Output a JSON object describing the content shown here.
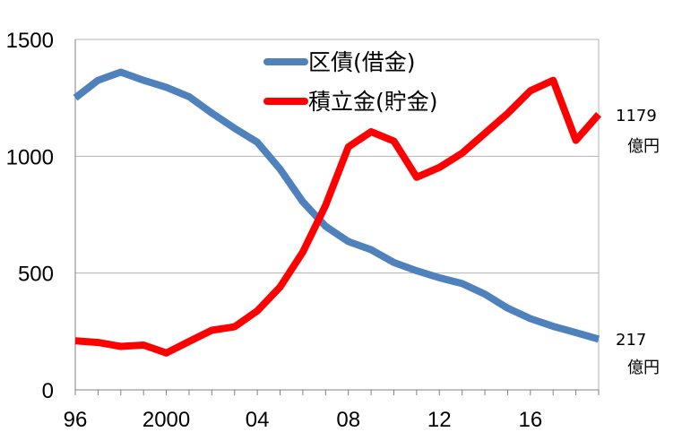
{
  "chart_data": {
    "type": "line",
    "title": "",
    "xlabel": "",
    "ylabel": "",
    "x": [
      1996,
      1997,
      1998,
      1999,
      2000,
      2001,
      2002,
      2003,
      2004,
      2005,
      2006,
      2007,
      2008,
      2009,
      2010,
      2011,
      2012,
      2013,
      2014,
      2015,
      2016,
      2017,
      2018,
      2019
    ],
    "xlim": [
      1996,
      2019
    ],
    "ylim": [
      0,
      1500
    ],
    "y_ticks": [
      0,
      500,
      1000,
      1500
    ],
    "y_tick_labels": [
      "0",
      "500",
      "1000",
      "1500"
    ],
    "x_ticks": [
      1996,
      2000,
      2004,
      2008,
      2012,
      2016
    ],
    "x_tick_labels": [
      "96",
      "2000",
      "04",
      "08",
      "12",
      "16"
    ],
    "grid": true,
    "legend_position": "top-center",
    "series": [
      {
        "name": "区債(借金)",
        "color": "#4f81bd",
        "values": [
          1250,
          1325,
          1360,
          1325,
          1295,
          1255,
          1185,
          1120,
          1060,
          945,
          805,
          700,
          635,
          600,
          545,
          510,
          480,
          455,
          410,
          350,
          305,
          272,
          245,
          217
        ]
      },
      {
        "name": "積立金(貯金)",
        "color": "#ff0000",
        "values": [
          210,
          203,
          186,
          192,
          158,
          207,
          255,
          270,
          338,
          440,
          590,
          790,
          1040,
          1105,
          1065,
          910,
          952,
          1013,
          1098,
          1183,
          1280,
          1325,
          1068,
          1179
        ]
      }
    ],
    "annotations": [
      {
        "series": 1,
        "value_text": "1179",
        "unit_text": "億円"
      },
      {
        "series": 0,
        "value_text": "217",
        "unit_text": "億円"
      }
    ]
  }
}
